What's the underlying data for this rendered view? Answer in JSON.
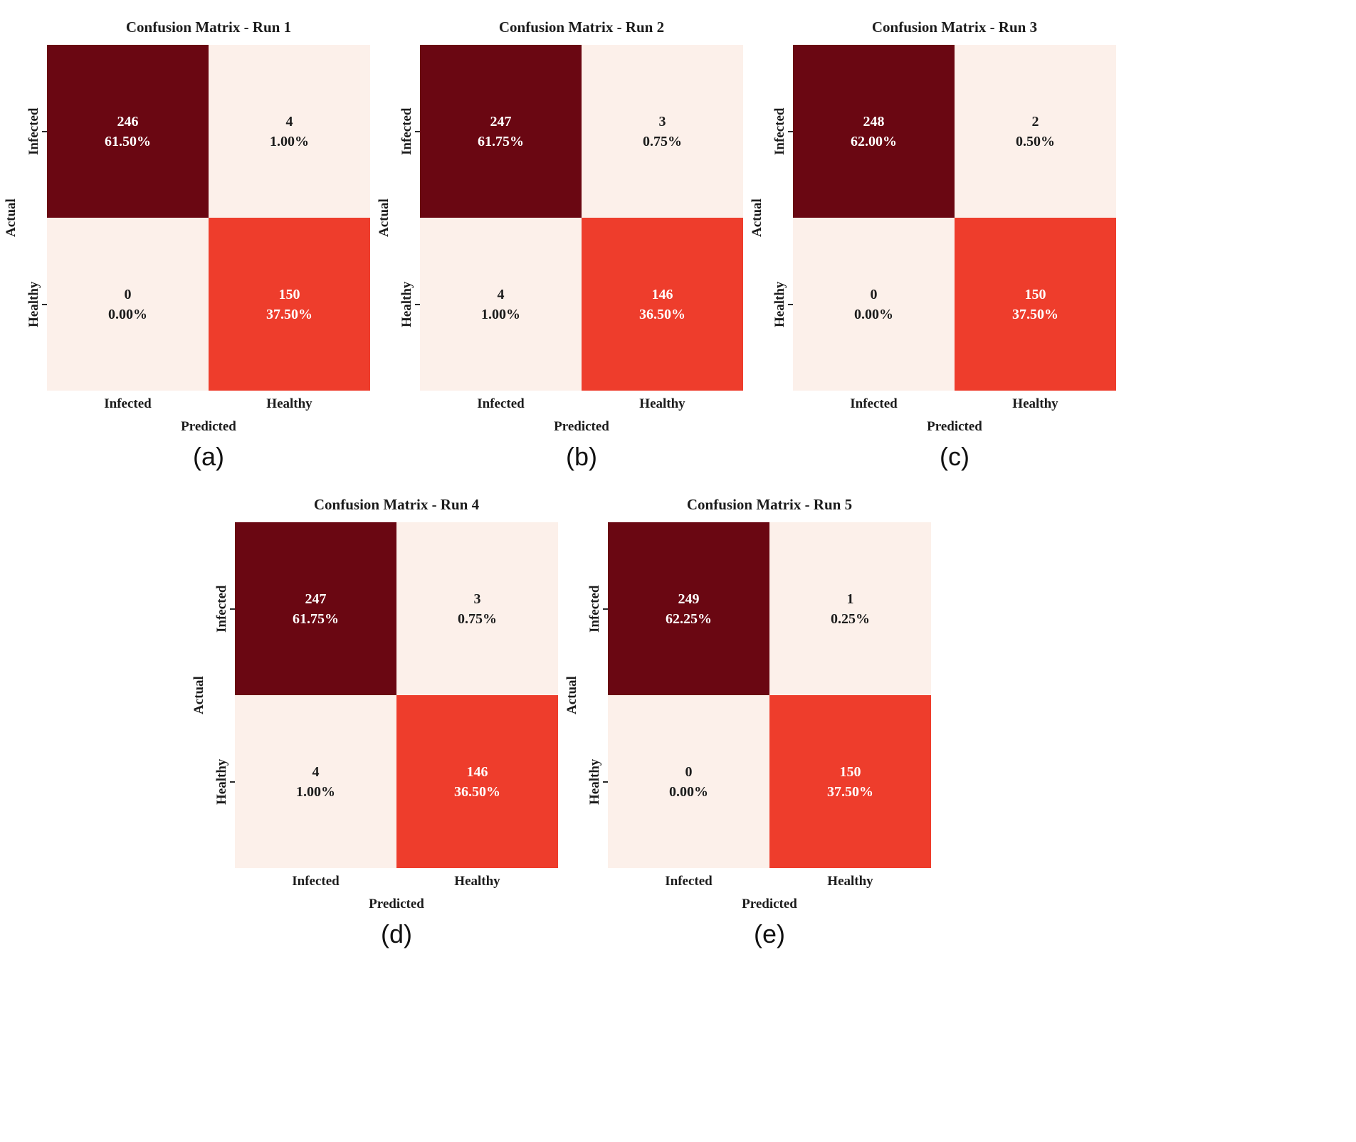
{
  "style": {
    "colors": {
      "background": "#ffffff",
      "cell-dark": "#6a0712",
      "cell-light": "#fcf0ea",
      "cell-mid": "#ee3d2c",
      "text-on-dark": "#ffffff",
      "text-on-light": "#1c1c1c"
    }
  },
  "chart_data": [
    {
      "type": "heatmap",
      "title": "Confusion Matrix - Run 1",
      "caption": "(a)",
      "xlabel": "Predicted",
      "ylabel": "Actual",
      "x_tick_labels": [
        "Infected",
        "Healthy"
      ],
      "y_tick_labels": [
        "Infected",
        "Healthy"
      ],
      "cells": [
        {
          "actual": "Infected",
          "predicted": "Infected",
          "count": 246,
          "percent": "61.50%",
          "shade": "dark"
        },
        {
          "actual": "Infected",
          "predicted": "Healthy",
          "count": 4,
          "percent": "1.00%",
          "shade": "light"
        },
        {
          "actual": "Healthy",
          "predicted": "Infected",
          "count": 0,
          "percent": "0.00%",
          "shade": "light"
        },
        {
          "actual": "Healthy",
          "predicted": "Healthy",
          "count": 150,
          "percent": "37.50%",
          "shade": "mid"
        }
      ]
    },
    {
      "type": "heatmap",
      "title": "Confusion Matrix - Run 2",
      "caption": "(b)",
      "xlabel": "Predicted",
      "ylabel": "Actual",
      "x_tick_labels": [
        "Infected",
        "Healthy"
      ],
      "y_tick_labels": [
        "Infected",
        "Healthy"
      ],
      "cells": [
        {
          "actual": "Infected",
          "predicted": "Infected",
          "count": 247,
          "percent": "61.75%",
          "shade": "dark"
        },
        {
          "actual": "Infected",
          "predicted": "Healthy",
          "count": 3,
          "percent": "0.75%",
          "shade": "light"
        },
        {
          "actual": "Healthy",
          "predicted": "Infected",
          "count": 4,
          "percent": "1.00%",
          "shade": "light"
        },
        {
          "actual": "Healthy",
          "predicted": "Healthy",
          "count": 146,
          "percent": "36.50%",
          "shade": "mid"
        }
      ]
    },
    {
      "type": "heatmap",
      "title": "Confusion Matrix - Run 3",
      "caption": "(c)",
      "xlabel": "Predicted",
      "ylabel": "Actual",
      "x_tick_labels": [
        "Infected",
        "Healthy"
      ],
      "y_tick_labels": [
        "Infected",
        "Healthy"
      ],
      "cells": [
        {
          "actual": "Infected",
          "predicted": "Infected",
          "count": 248,
          "percent": "62.00%",
          "shade": "dark"
        },
        {
          "actual": "Infected",
          "predicted": "Healthy",
          "count": 2,
          "percent": "0.50%",
          "shade": "light"
        },
        {
          "actual": "Healthy",
          "predicted": "Infected",
          "count": 0,
          "percent": "0.00%",
          "shade": "light"
        },
        {
          "actual": "Healthy",
          "predicted": "Healthy",
          "count": 150,
          "percent": "37.50%",
          "shade": "mid"
        }
      ]
    },
    {
      "type": "heatmap",
      "title": "Confusion Matrix - Run 4",
      "caption": "(d)",
      "xlabel": "Predicted",
      "ylabel": "Actual",
      "x_tick_labels": [
        "Infected",
        "Healthy"
      ],
      "y_tick_labels": [
        "Infected",
        "Healthy"
      ],
      "cells": [
        {
          "actual": "Infected",
          "predicted": "Infected",
          "count": 247,
          "percent": "61.75%",
          "shade": "dark"
        },
        {
          "actual": "Infected",
          "predicted": "Healthy",
          "count": 3,
          "percent": "0.75%",
          "shade": "light"
        },
        {
          "actual": "Healthy",
          "predicted": "Infected",
          "count": 4,
          "percent": "1.00%",
          "shade": "light"
        },
        {
          "actual": "Healthy",
          "predicted": "Healthy",
          "count": 146,
          "percent": "36.50%",
          "shade": "mid"
        }
      ]
    },
    {
      "type": "heatmap",
      "title": "Confusion Matrix - Run 5",
      "caption": "(e)",
      "xlabel": "Predicted",
      "ylabel": "Actual",
      "x_tick_labels": [
        "Infected",
        "Healthy"
      ],
      "y_tick_labels": [
        "Infected",
        "Healthy"
      ],
      "cells": [
        {
          "actual": "Infected",
          "predicted": "Infected",
          "count": 249,
          "percent": "62.25%",
          "shade": "dark"
        },
        {
          "actual": "Infected",
          "predicted": "Healthy",
          "count": 1,
          "percent": "0.25%",
          "shade": "light"
        },
        {
          "actual": "Healthy",
          "predicted": "Infected",
          "count": 0,
          "percent": "0.00%",
          "shade": "light"
        },
        {
          "actual": "Healthy",
          "predicted": "Healthy",
          "count": 150,
          "percent": "37.50%",
          "shade": "mid"
        }
      ]
    }
  ]
}
